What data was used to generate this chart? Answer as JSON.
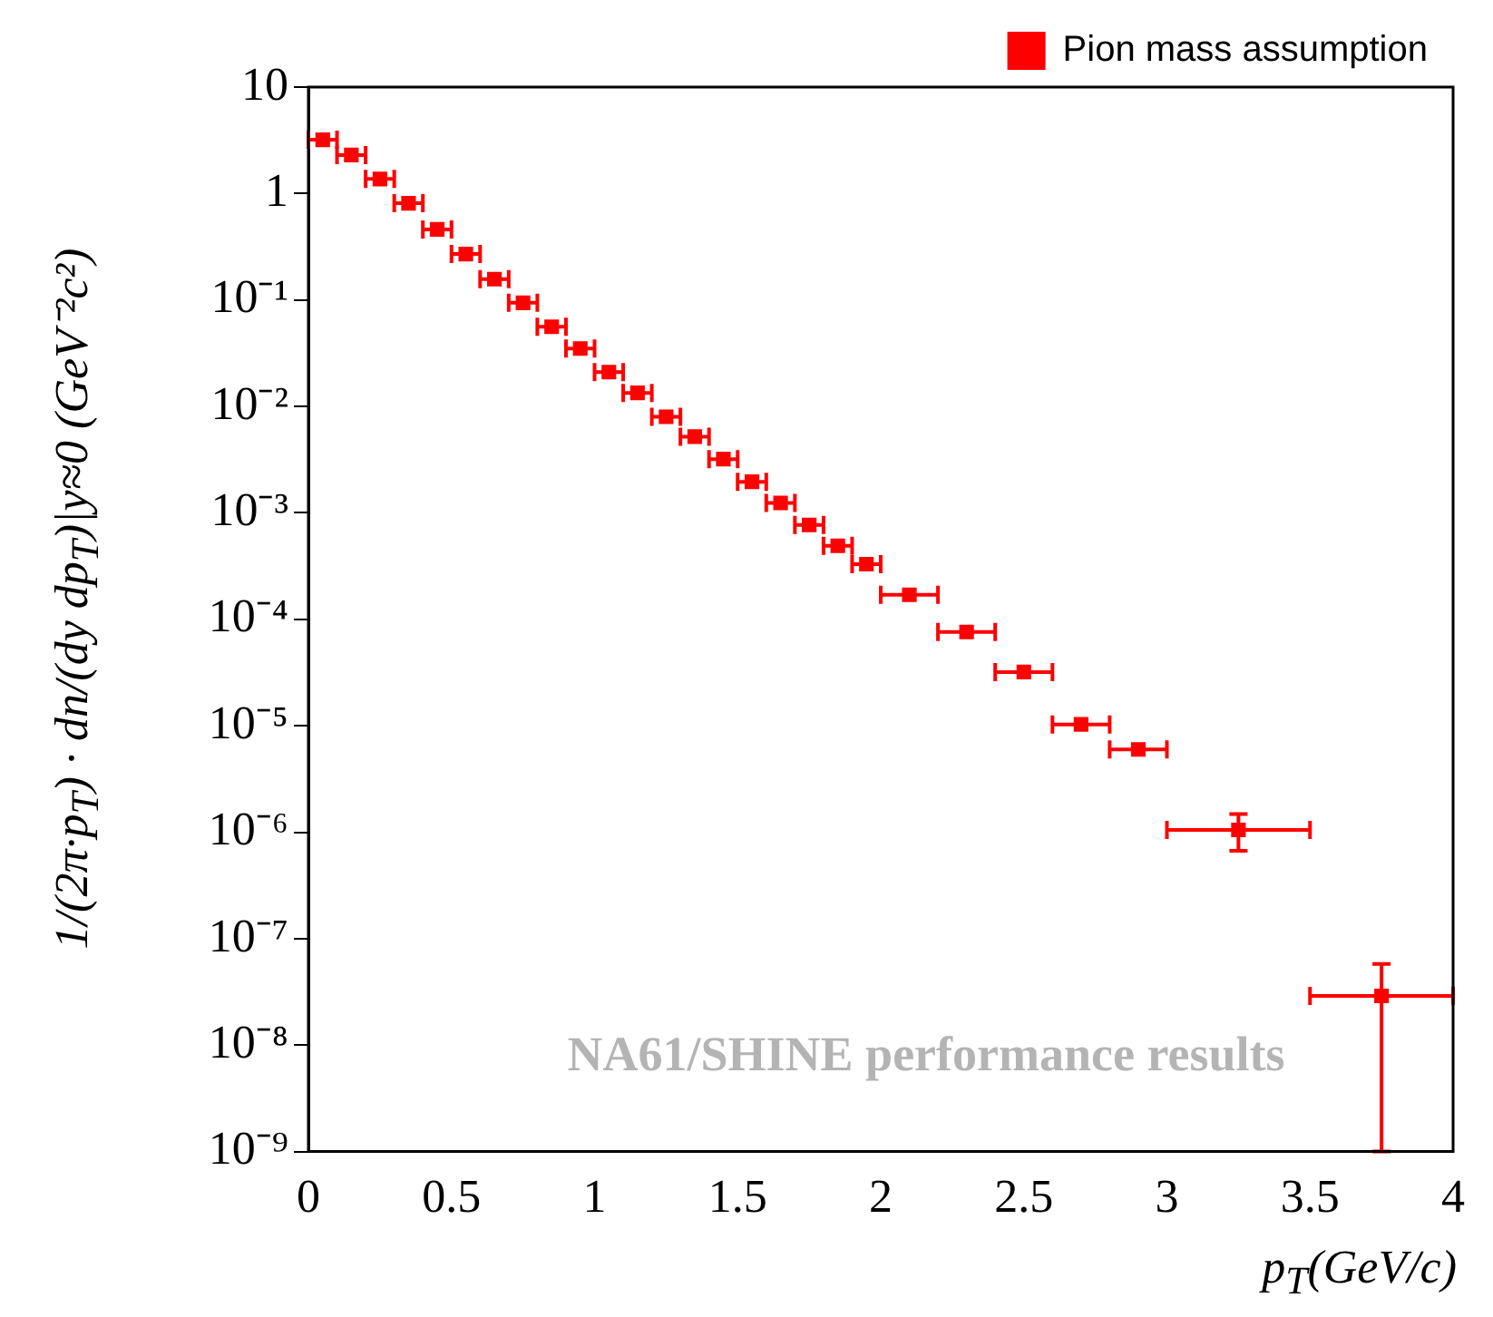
{
  "chart_data": {
    "type": "scatter",
    "xlabel": "p$_{T}$(GeV/c)",
    "ylabel": "1/(2π·p$_{T}$) · dn/(dy dp$_{T}$)|y≈0 (GeV⁻²c²)",
    "log": "y",
    "grid": false,
    "legend": "top right",
    "marker": "square",
    "xlim": [
      0,
      4
    ],
    "xticks": [
      0,
      0.5,
      1,
      1.5,
      2,
      2.5,
      3,
      3.5,
      4
    ],
    "ylim": [
      1e-09,
      10
    ],
    "yticks": [
      {
        "value": 1e-09,
        "label": "10⁻⁹"
      },
      {
        "value": 1e-08,
        "label": "10⁻⁸"
      },
      {
        "value": 1e-07,
        "label": "10⁻⁷"
      },
      {
        "value": 1e-06,
        "label": "10⁻⁶"
      },
      {
        "value": 1e-05,
        "label": "10⁻⁵"
      },
      {
        "value": 0.0001,
        "label": "10⁻⁴"
      },
      {
        "value": 0.001,
        "label": "10⁻³"
      },
      {
        "value": 0.01,
        "label": "10⁻²"
      },
      {
        "value": 0.1,
        "label": "10⁻¹"
      },
      1,
      10
    ],
    "annotations": [
      "NA61/SHINE performance results"
    ],
    "series": [
      {
        "name": "Pion mass assumption",
        "color": "#ff0000",
        "x": [
          0.05,
          0.15,
          0.25,
          0.35,
          0.45,
          0.55,
          0.65,
          0.75,
          0.85,
          0.95,
          1.05,
          1.15,
          1.25,
          1.35,
          1.45,
          1.55,
          1.65,
          1.75,
          1.85,
          1.95,
          2.1,
          2.3,
          2.5,
          2.7,
          2.9,
          3.25,
          3.75
        ],
        "values": [
          3.2,
          2.3,
          1.37,
          0.81,
          0.46,
          0.27,
          0.157,
          0.094,
          0.056,
          0.035,
          0.021,
          0.0134,
          0.008,
          0.0052,
          0.0032,
          0.00196,
          0.00124,
          0.00077,
          0.00049,
          0.00033,
          0.00017,
          7.6e-05,
          3.2e-05,
          1.03e-05,
          6e-06,
          1.05e-06,
          2.9e-08
        ],
        "xerrors": [
          0.05,
          0.05,
          0.05,
          0.05,
          0.05,
          0.05,
          0.05,
          0.05,
          0.05,
          0.05,
          0.05,
          0.05,
          0.05,
          0.05,
          0.05,
          0.05,
          0.05,
          0.05,
          0.05,
          0.05,
          0.1,
          0.1,
          0.1,
          0.1,
          0.1,
          0.25,
          0.25
        ],
        "errors": [
          null,
          null,
          null,
          null,
          null,
          null,
          null,
          null,
          null,
          null,
          null,
          null,
          null,
          null,
          null,
          null,
          null,
          null,
          null,
          null,
          null,
          null,
          null,
          null,
          null,
          [
            6.7e-07,
            1.48e-06
          ],
          [
            1e-09,
            5.8e-08
          ]
        ]
      }
    ]
  }
}
